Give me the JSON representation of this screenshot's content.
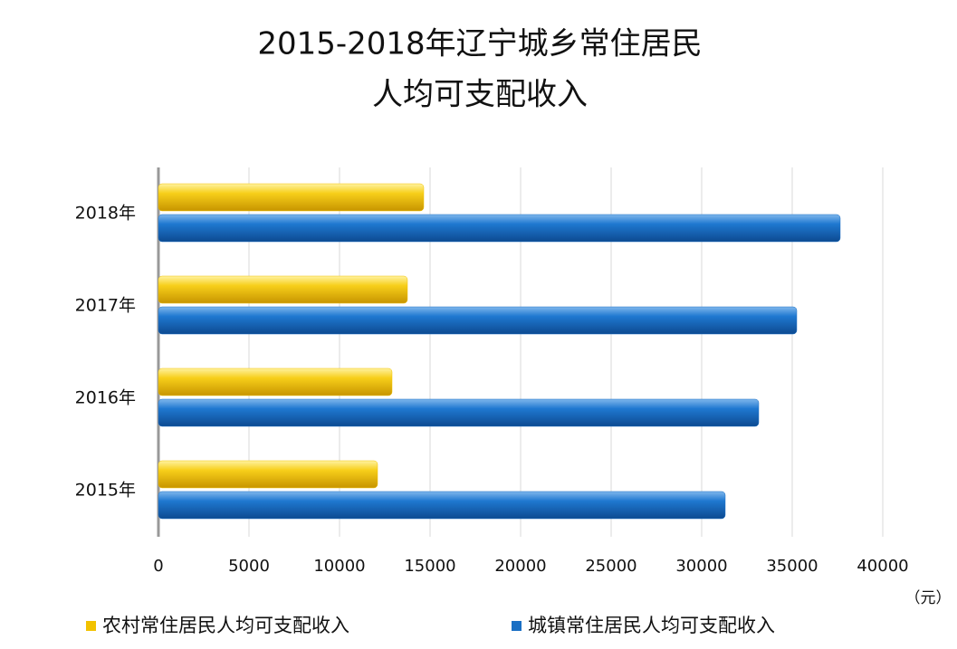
{
  "chart_data": {
    "type": "hbar",
    "title": [
      "2015-2018年辽宁城乡常住居民",
      "人均可支配收入"
    ],
    "categories": [
      "2015年",
      "2016年",
      "2017年",
      "2018年"
    ],
    "series": [
      {
        "name": "农村常住居民人均可支配收入",
        "color": "#f2c200",
        "values": [
          12100,
          12900,
          13750,
          14650
        ]
      },
      {
        "name": "城镇常住居民人均可支配收入",
        "color": "#1a6fc4",
        "values": [
          31300,
          33150,
          35250,
          37650
        ]
      }
    ],
    "xlim": [
      0,
      40000
    ],
    "xticks": [
      0,
      5000,
      10000,
      15000,
      20000,
      25000,
      30000,
      35000,
      40000
    ],
    "x_unit": "（元）",
    "grid": true,
    "legend": "bottom"
  }
}
